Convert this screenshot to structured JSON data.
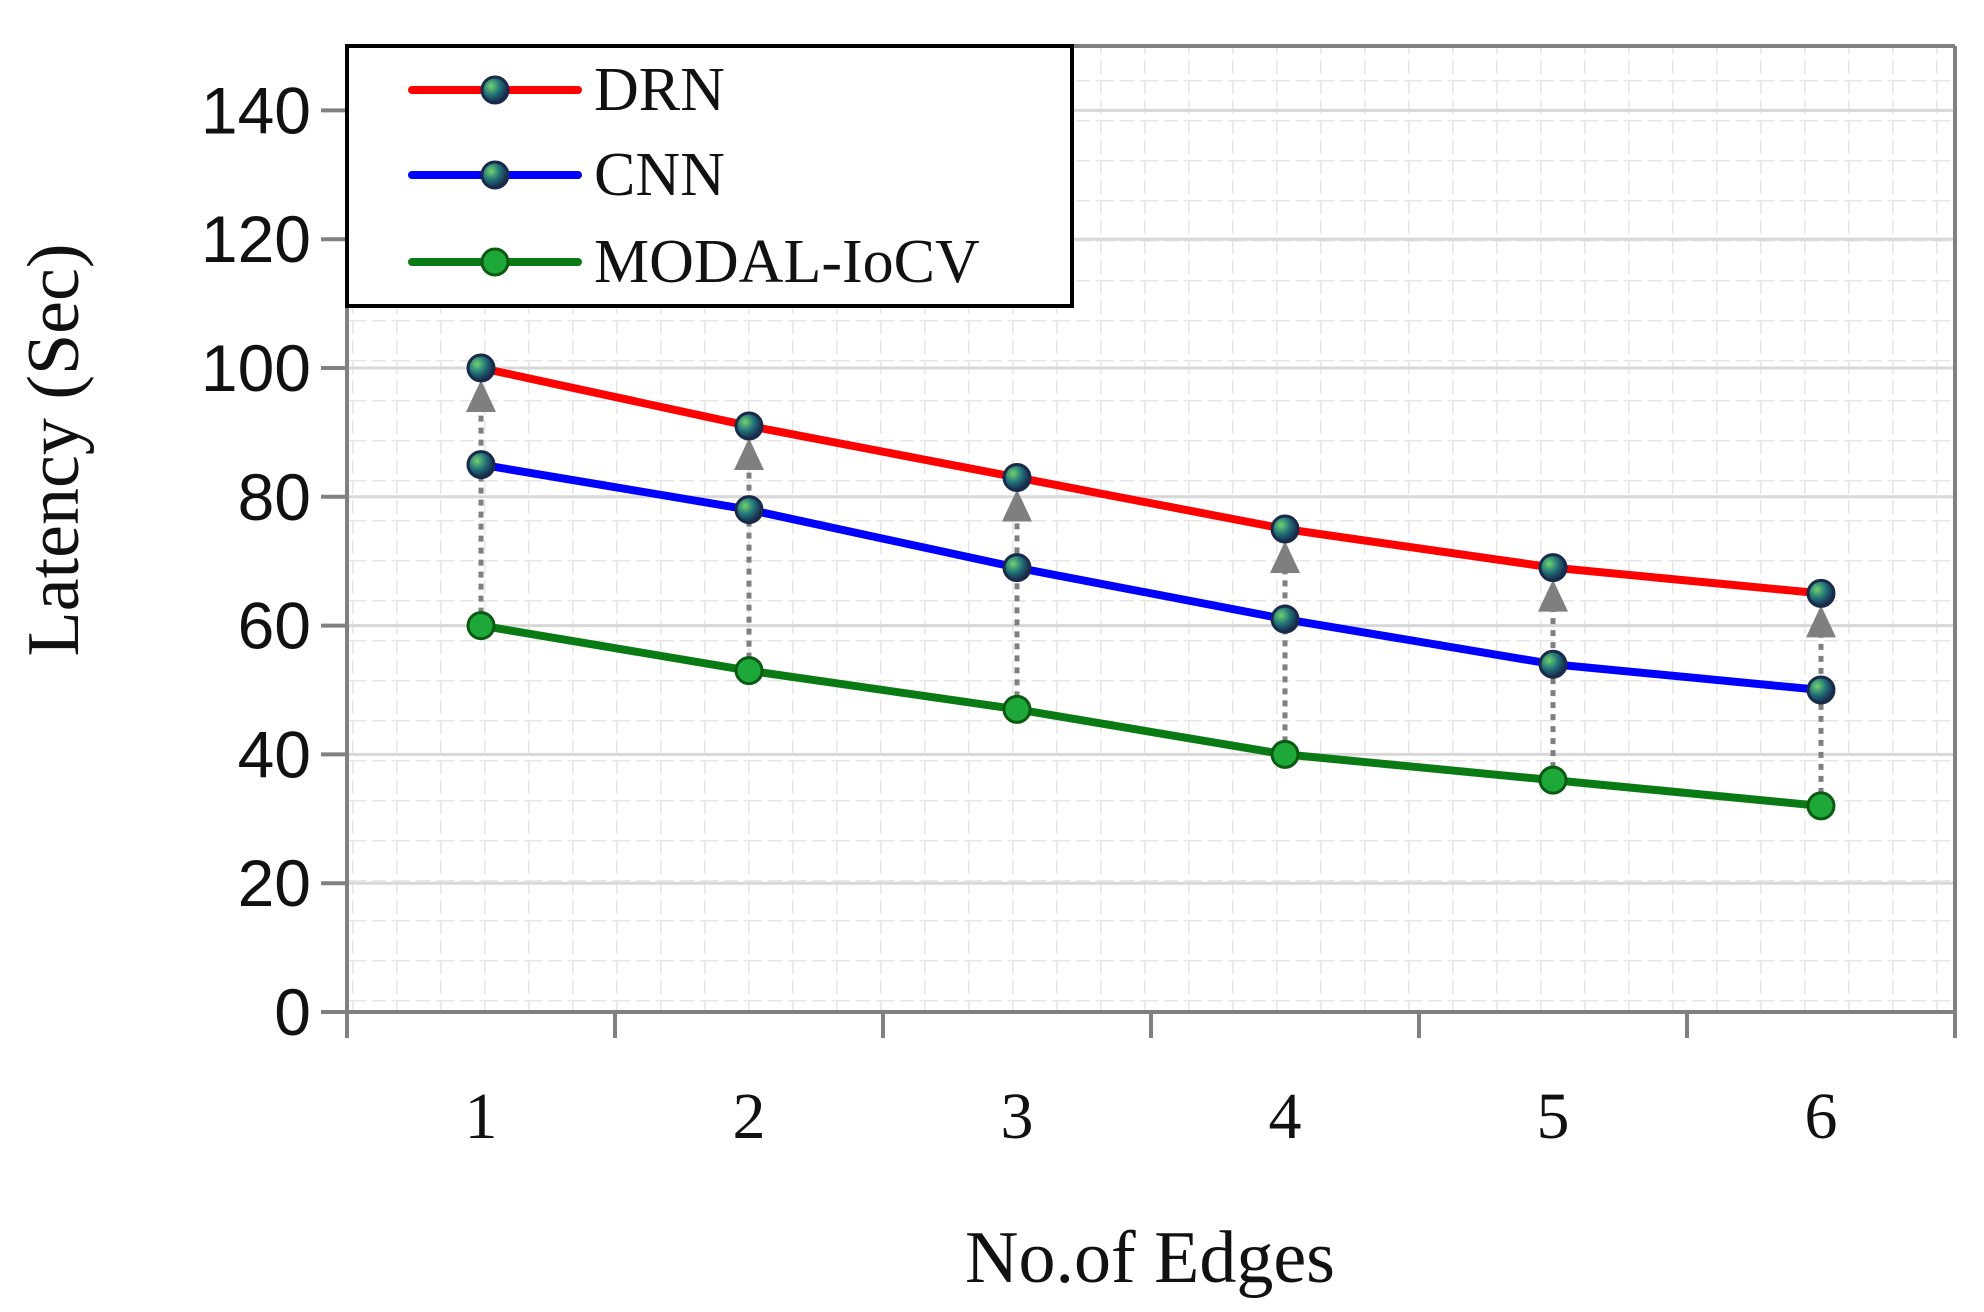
{
  "chart_data": {
    "type": "line",
    "title": "",
    "xlabel": "No.of Edges",
    "ylabel": "Latency (Sec)",
    "categories": [
      "1",
      "2",
      "3",
      "4",
      "5",
      "6"
    ],
    "ylim": [
      0,
      150
    ],
    "yticks": [
      0,
      20,
      40,
      60,
      80,
      100,
      120,
      140
    ],
    "grid": true,
    "legend_position": "top-left",
    "series": [
      {
        "name": "DRN",
        "color": "#ff0000",
        "values": [
          100,
          91,
          83,
          75,
          69,
          65
        ]
      },
      {
        "name": "CNN",
        "color": "#0000ff",
        "values": [
          85,
          78,
          69,
          61,
          54,
          50
        ]
      },
      {
        "name": "MODAL-IoCV",
        "color": "#0a7a14",
        "values": [
          60,
          53,
          47,
          40,
          36,
          32
        ]
      }
    ],
    "annotations": "Dotted gray arrows from MODAL-IoCV points up to DRN points at each edge count"
  }
}
